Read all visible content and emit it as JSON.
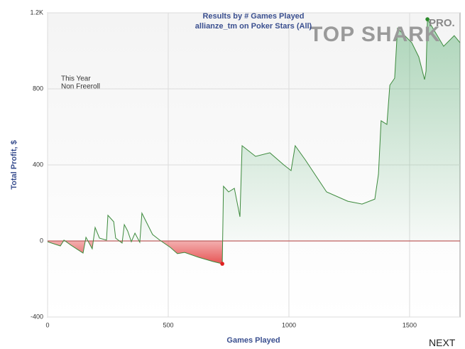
{
  "chart_data": {
    "type": "area",
    "title": "Results by # Games Played",
    "subtitle": "allianze_tm on Poker Stars (All)",
    "logo": "TOP SHARK",
    "logo_badge": "PRO.",
    "annotations": [
      "This Year",
      "Non Freeroll"
    ],
    "xlabel": "Games Played",
    "ylabel": "Total Profit, $",
    "x": [
      0,
      53,
      68,
      97,
      147,
      159,
      185,
      197,
      215,
      244,
      250,
      274,
      282,
      309,
      318,
      332,
      347,
      362,
      382,
      391,
      435,
      465,
      509,
      538,
      568,
      626,
      685,
      724,
      729,
      750,
      774,
      797,
      806,
      862,
      921,
      979,
      1009,
      1026,
      1068,
      1156,
      1244,
      1303,
      1356,
      1371,
      1382,
      1406,
      1418,
      1438,
      1450,
      1509,
      1538,
      1562,
      1568,
      1574,
      1597,
      1641,
      1685,
      1709
    ],
    "values": [
      -4,
      -26,
      4,
      -22,
      -64,
      19,
      -41,
      71,
      15,
      4,
      135,
      101,
      15,
      -11,
      86,
      52,
      -4,
      41,
      -7,
      146,
      34,
      4,
      -34,
      -67,
      -60,
      -86,
      -108,
      -120,
      288,
      258,
      277,
      127,
      501,
      445,
      464,
      400,
      370,
      501,
      426,
      258,
      209,
      194,
      220,
      351,
      632,
      613,
      819,
      856,
      1118,
      1043,
      968,
      849,
      893,
      1166,
      1118,
      1024,
      1080,
      1043
    ],
    "color": "#3d8a3d",
    "positive_fill": "#3aa35a",
    "negative_fill": "#e02020",
    "zero_line_color": "#c06060",
    "min_color": "#e02020",
    "max_color": "#2a8a2a",
    "xlim": [
      0,
      1709
    ],
    "ylim": [
      -400,
      1200
    ],
    "xticks": [
      0,
      500,
      1000,
      1500
    ],
    "yticks": [
      -400,
      0,
      400,
      800,
      {
        "value": 1200,
        "label": "1.2K"
      }
    ],
    "grid": true,
    "next_button": "NEXT"
  }
}
